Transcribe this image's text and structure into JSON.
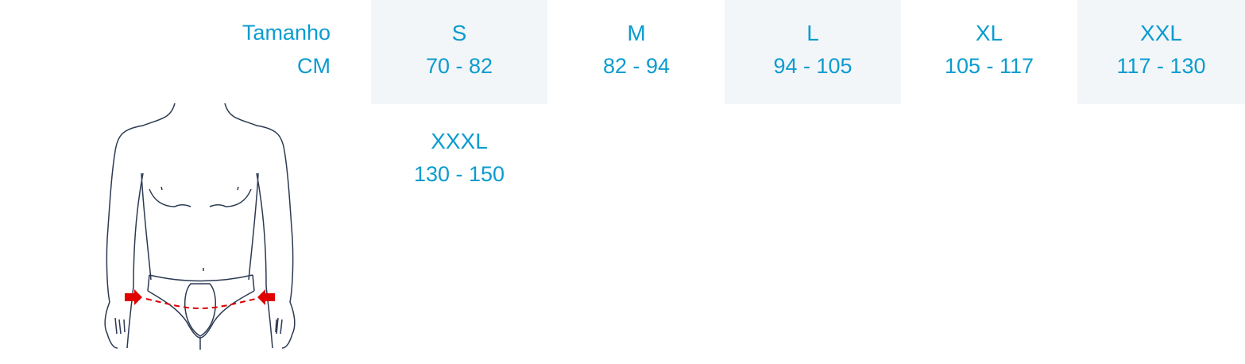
{
  "header": {
    "size_label": "Tamanho",
    "unit_label": "CM"
  },
  "sizes": [
    {
      "size": "S",
      "range": "70 - 82"
    },
    {
      "size": "M",
      "range": "82 - 94"
    },
    {
      "size": "L",
      "range": "94 - 105"
    },
    {
      "size": "XL",
      "range": "105 - 117"
    },
    {
      "size": "XXL",
      "range": "117 - 130"
    },
    {
      "size": "XXXL",
      "range": "130 - 150"
    }
  ],
  "colors": {
    "text": "#0b9ccf",
    "shade": "#f3f6f9",
    "measure": "#e00000",
    "outline": "#2c3a52"
  },
  "figure": {
    "icon": "body-hip-measurement-illustration"
  }
}
